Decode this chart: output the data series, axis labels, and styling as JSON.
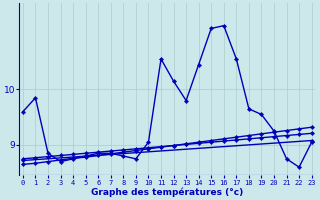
{
  "title": "Graphe des températures (°c)",
  "background_color": "#cce8ea",
  "grid_color": "#aacccc",
  "line_color": "#0000bb",
  "x_values": [
    0,
    1,
    2,
    3,
    4,
    5,
    6,
    7,
    8,
    9,
    10,
    11,
    12,
    13,
    14,
    15,
    16,
    17,
    18,
    19,
    20,
    21,
    22,
    23
  ],
  "series1": [
    9.6,
    9.85,
    8.85,
    8.7,
    8.75,
    8.8,
    8.85,
    8.85,
    8.8,
    8.75,
    9.05,
    10.55,
    10.15,
    9.8,
    10.45,
    11.1,
    11.15,
    10.55,
    9.65,
    9.55,
    9.25,
    8.75,
    8.6,
    9.05
  ],
  "series2_x": [
    0,
    1,
    2,
    3,
    4,
    5,
    6,
    7,
    8,
    9,
    10,
    11,
    12,
    13,
    14,
    15,
    16,
    17,
    18,
    19,
    20,
    21,
    22,
    23
  ],
  "series2_y": [
    8.75,
    8.77,
    8.79,
    8.81,
    8.83,
    8.85,
    8.87,
    8.89,
    8.91,
    8.93,
    8.95,
    8.97,
    8.99,
    9.01,
    9.03,
    9.05,
    9.07,
    9.09,
    9.11,
    9.13,
    9.15,
    9.17,
    9.19,
    9.21
  ],
  "series3_x": [
    0,
    1,
    2,
    3,
    4,
    5,
    6,
    7,
    8,
    9,
    10,
    11,
    12,
    13,
    14,
    15,
    16,
    17,
    18,
    19,
    20,
    21,
    22,
    23
  ],
  "series3_y": [
    8.65,
    8.67,
    8.7,
    8.73,
    8.76,
    8.78,
    8.81,
    8.84,
    8.87,
    8.9,
    8.93,
    8.96,
    8.99,
    9.02,
    9.05,
    9.08,
    9.11,
    9.14,
    9.17,
    9.2,
    9.23,
    9.26,
    9.29,
    9.32
  ],
  "series4_x": [
    0,
    23
  ],
  "series4_y": [
    8.72,
    9.08
  ],
  "ylim": [
    8.45,
    11.55
  ],
  "yticks": [
    9,
    10
  ],
  "xlim": [
    -0.3,
    23.3
  ],
  "marker": "D",
  "marker_size": 2.2,
  "linewidth": 1.0
}
